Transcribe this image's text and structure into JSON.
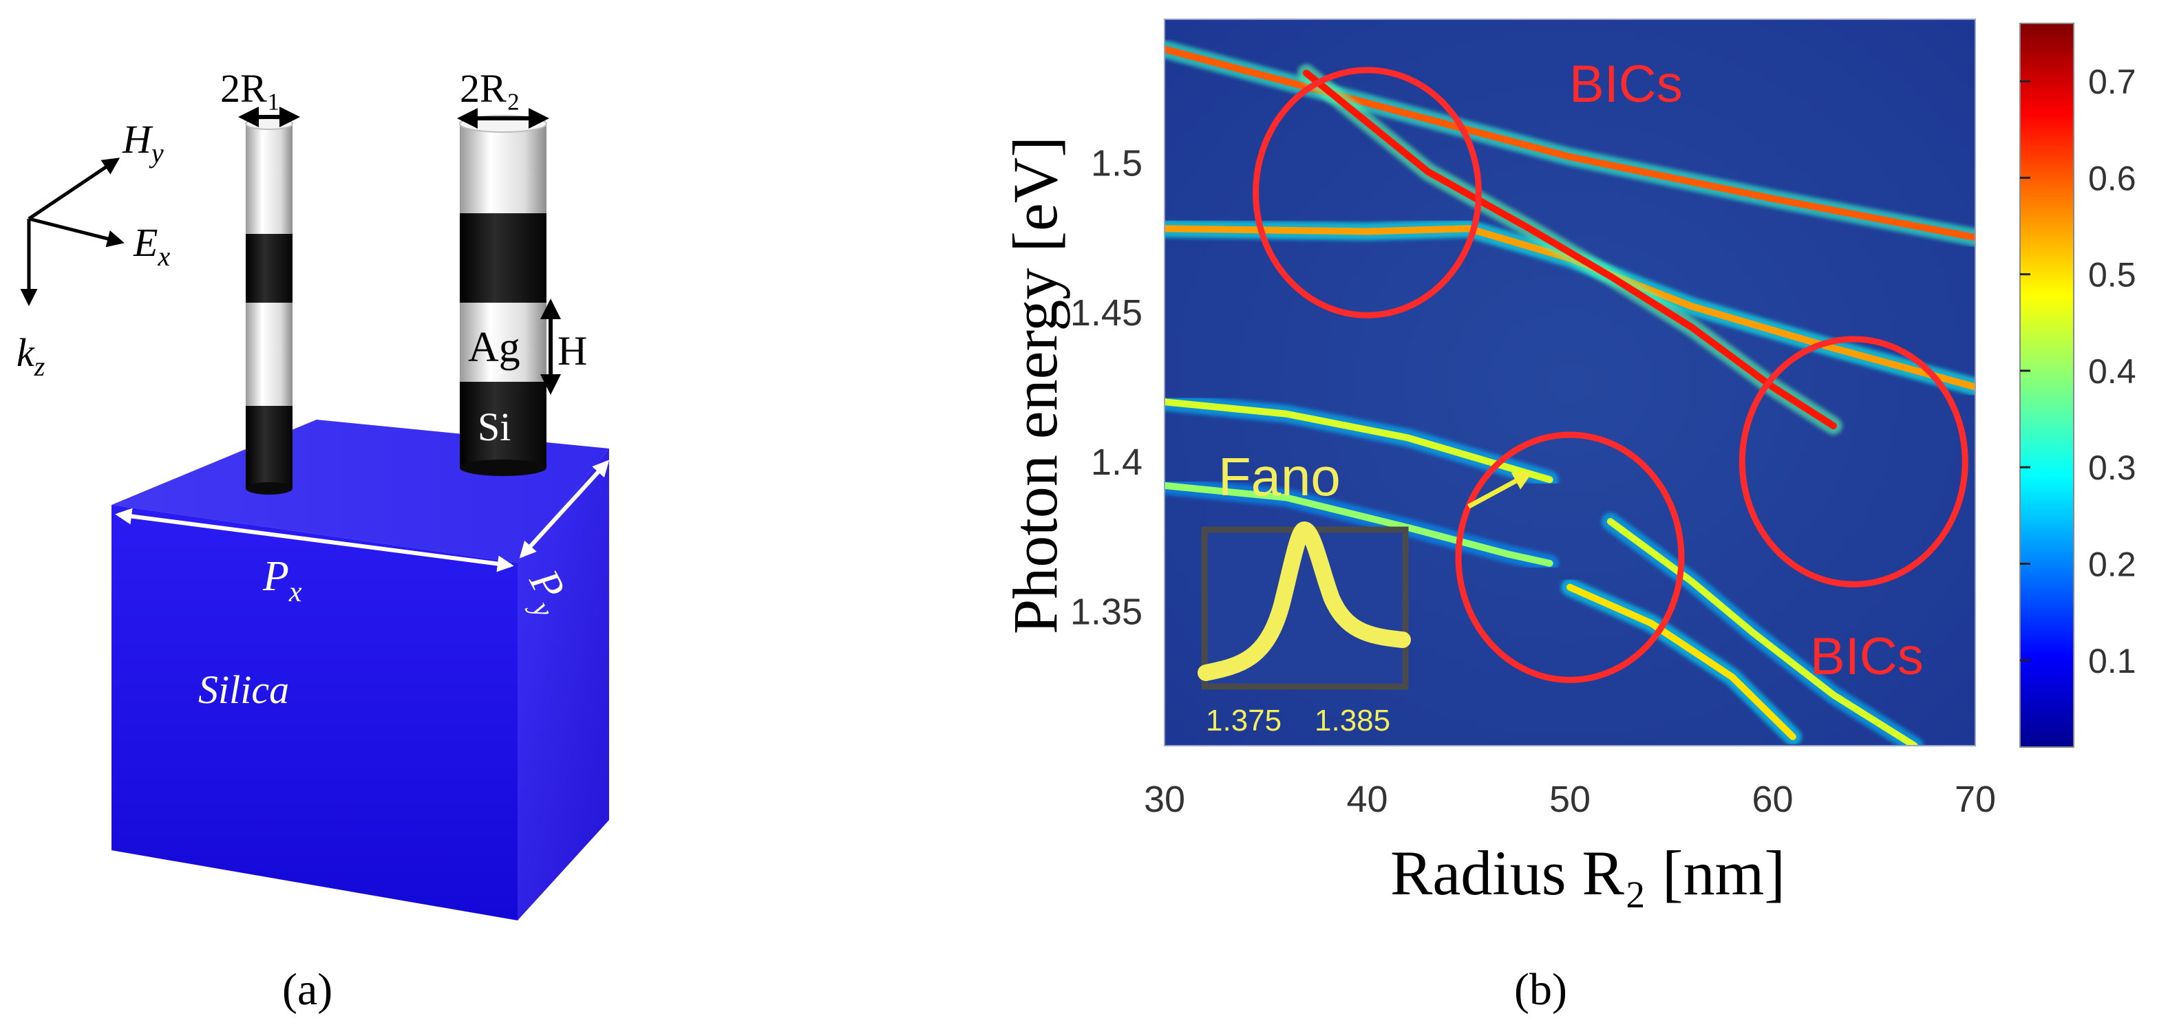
{
  "panel_a": {
    "label": "(a)",
    "radius1_label": "2R₁",
    "radius2_label": "2R₂",
    "hy_label": "H",
    "hy_sub": "y",
    "ex_label": "E",
    "ex_sub": "x",
    "kz_label": "k",
    "kz_sub": "z",
    "ag_label": "Ag",
    "si_label": "Si",
    "height_label": "H",
    "px_label": "P",
    "px_sub": "x",
    "py_label": "P",
    "py_sub": "y",
    "substrate_label": "Silica",
    "colors": {
      "substrate_front": "#1a0ee6",
      "substrate_top": "#3b32f0",
      "substrate_side": "#2418d0",
      "rod_dark": "#111111",
      "rod_light": "#f2f2f2"
    }
  },
  "panel_b": {
    "label": "(b)",
    "bics_top": "BICs",
    "bics_bottom": "BICs",
    "fano_label": "Fano",
    "fano_tick_left": "1.375",
    "fano_tick_right": "1.385",
    "colors": {
      "map_background": "#1f3f9e",
      "annotation_red": "#ff2a2a",
      "fano_yellow": "#f2ee5c"
    }
  },
  "chart_data": {
    "type": "heatmap",
    "title": "",
    "xlabel": "Radius R₂ [nm]",
    "ylabel": "Photon energy [eV]",
    "xlim": [
      30,
      70
    ],
    "ylim": [
      1.305,
      1.548
    ],
    "x_ticks": [
      30,
      40,
      50,
      60,
      70
    ],
    "x_tick_labels": [
      "30",
      "40",
      "50",
      "60",
      "70"
    ],
    "y_ticks": [
      1.35,
      1.4,
      1.45,
      1.5
    ],
    "y_tick_labels": [
      "1.35",
      "1.4",
      "1.45",
      "1.5"
    ],
    "colorbar": {
      "range": [
        0.01,
        0.76
      ],
      "ticks": [
        0.1,
        0.2,
        0.3,
        0.4,
        0.5,
        0.6,
        0.7
      ],
      "tick_labels": [
        "0.1",
        "0.2",
        "0.3",
        "0.4",
        "0.5",
        "0.6",
        "0.7"
      ],
      "colormap": "jet"
    },
    "modes": [
      {
        "name": "mode-1",
        "points": [
          [
            30,
            1.538
          ],
          [
            40,
            1.52
          ],
          [
            50,
            1.502
          ],
          [
            60,
            1.488
          ],
          [
            70,
            1.475
          ]
        ],
        "intensity": 0.6
      },
      {
        "name": "mode-2",
        "points": [
          [
            30,
            1.478
          ],
          [
            40,
            1.477
          ],
          [
            45,
            1.478
          ],
          [
            50,
            1.468
          ],
          [
            56,
            1.452
          ],
          [
            63,
            1.438
          ],
          [
            70,
            1.425
          ]
        ],
        "intensity": 0.55
      },
      {
        "name": "mode-3",
        "points": [
          [
            37,
            1.53
          ],
          [
            43,
            1.497
          ],
          [
            48,
            1.478
          ],
          [
            52,
            1.462
          ],
          [
            56,
            1.445
          ],
          [
            60,
            1.425
          ],
          [
            63,
            1.412
          ]
        ],
        "intensity": 0.65
      },
      {
        "name": "mode-4",
        "points": [
          [
            30,
            1.42
          ],
          [
            36,
            1.416
          ],
          [
            42,
            1.408
          ],
          [
            47,
            1.398
          ],
          [
            49,
            1.394
          ]
        ],
        "intensity": 0.45
      },
      {
        "name": "mode-5",
        "points": [
          [
            30,
            1.392
          ],
          [
            36,
            1.388
          ],
          [
            42,
            1.378
          ],
          [
            47,
            1.369
          ],
          [
            49,
            1.366
          ]
        ],
        "intensity": 0.4
      },
      {
        "name": "mode-6",
        "points": [
          [
            50,
            1.358
          ],
          [
            54,
            1.346
          ],
          [
            58,
            1.328
          ],
          [
            61,
            1.308
          ]
        ],
        "intensity": 0.5
      },
      {
        "name": "mode-7",
        "points": [
          [
            52,
            1.38
          ],
          [
            56,
            1.36
          ],
          [
            59,
            1.343
          ],
          [
            63,
            1.322
          ],
          [
            67,
            1.305
          ]
        ],
        "intensity": 0.45
      }
    ],
    "annotations": [
      {
        "type": "ellipse",
        "label": "BICs",
        "center": [
          40,
          1.49
        ],
        "radii_data": [
          5.5,
          0.041
        ]
      },
      {
        "type": "ellipse",
        "label": "",
        "center": [
          50,
          1.368
        ],
        "radii_data": [
          5.5,
          0.041
        ]
      },
      {
        "type": "ellipse",
        "label": "BICs",
        "center": [
          64,
          1.4
        ],
        "radii_data": [
          5.5,
          0.041
        ]
      },
      {
        "type": "arrow",
        "label": "Fano",
        "from": [
          45,
          1.385
        ],
        "to": [
          48,
          1.396
        ]
      }
    ]
  }
}
